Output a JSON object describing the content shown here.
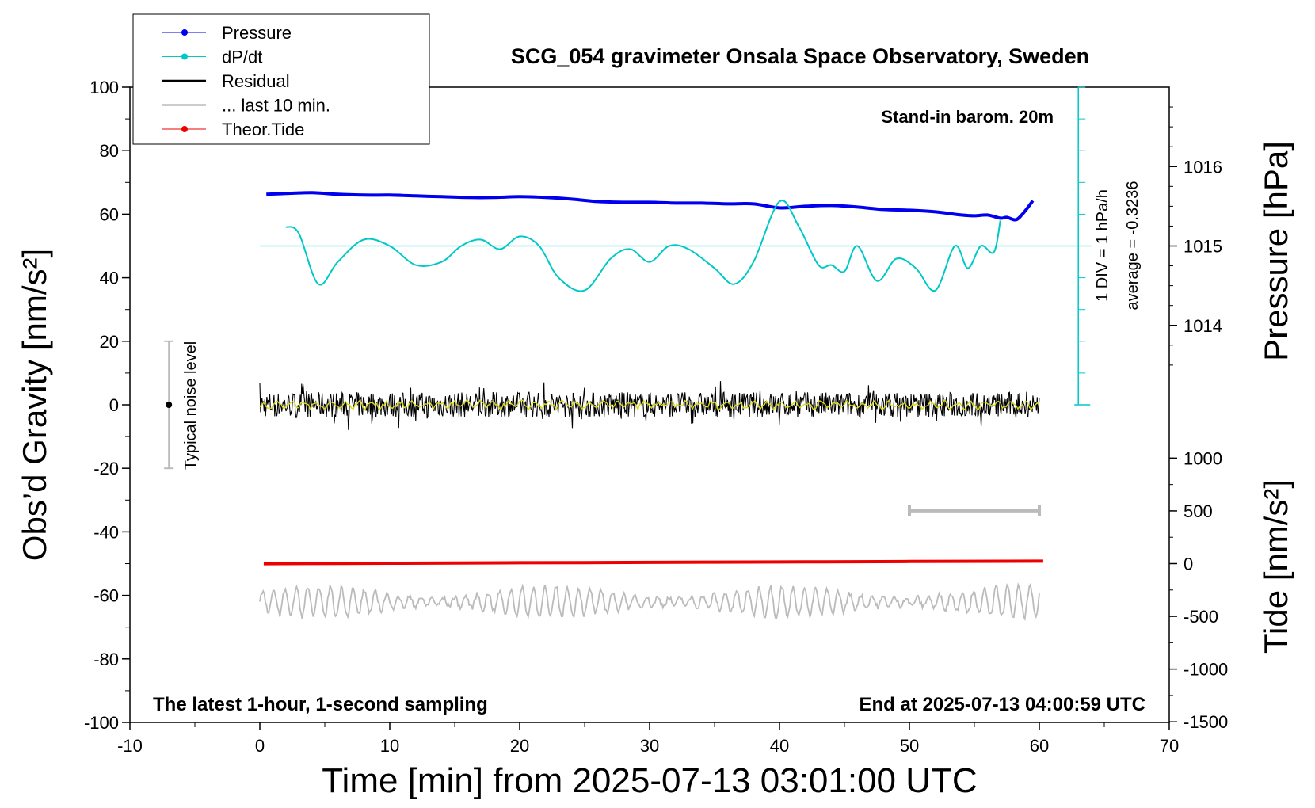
{
  "chart_data": {
    "type": "line",
    "title": "SCG_054 gravimeter Onsala Space Observatory, Sweden",
    "xlabel": "Time [min] from 2025-07-13 03:01:00 UTC",
    "ylabel_left": "Obs’d Gravity [nm/s²]",
    "ylabel_right_pressure": "Pressure [hPa]",
    "ylabel_right_tide": "Tide [nm/s²]",
    "xlim": [
      -10,
      70
    ],
    "ylim": [
      -100,
      100
    ],
    "x_ticks": [
      "-10",
      "0",
      "10",
      "20",
      "30",
      "40",
      "50",
      "60",
      "70"
    ],
    "y_ticks": [
      "-100",
      "-80",
      "-60",
      "-40",
      "-20",
      "0",
      "20",
      "40",
      "60",
      "80",
      "100"
    ],
    "pressure_axis": {
      "ticks": [
        "1014",
        "1015",
        "1016"
      ],
      "values": [
        1014,
        1015,
        1016
      ]
    },
    "tide_axis": {
      "ticks": [
        "-1500",
        "-1000",
        "-500",
        "0",
        "500",
        "1000"
      ],
      "values": [
        -1500,
        -1000,
        -500,
        0,
        500,
        1000
      ]
    },
    "legend": {
      "placement": "top-left",
      "entries": [
        {
          "label": "Pressure",
          "color": "#0000ee",
          "marker": true
        },
        {
          "label": "dP/dt",
          "color": "#00c8c8",
          "marker": true
        },
        {
          "label": "Residual",
          "color": "#000000",
          "marker": false
        },
        {
          "label": "... last 10 min.",
          "color": "#bbbbbb",
          "marker": false
        },
        {
          "label": "Theor.Tide",
          "color": "#ee0000",
          "marker": true
        }
      ]
    },
    "annotations": {
      "barometer": "Stand-in barom. 20m",
      "sampling": "The latest 1-hour, 1-second sampling",
      "end_time": "End at 2025-07-13 04:00:59 UTC",
      "noise_label": "Typical noise level",
      "dpdt_scale": "1 DIV = 1 hPa/h",
      "dpdt_average": "average = -0.3236"
    },
    "noise_bar": {
      "x": -7,
      "y_min": -20,
      "y_max": 20
    },
    "last10_bracket": {
      "x_start": 50,
      "x_end": 60,
      "tide_value": 500
    },
    "series": [
      {
        "name": "Pressure",
        "unit": "hPa",
        "color": "#0000ee",
        "x": [
          0.5,
          2,
          4,
          6,
          8,
          10,
          12,
          14,
          16,
          18,
          20,
          22,
          24,
          26,
          28,
          30,
          32,
          34,
          36,
          38,
          40,
          42,
          44,
          46,
          48,
          50,
          52,
          54,
          55,
          56,
          57,
          57.5,
          58.2,
          58.8,
          59.5
        ],
        "values": [
          1015.65,
          1015.66,
          1015.67,
          1015.65,
          1015.64,
          1015.64,
          1015.63,
          1015.62,
          1015.61,
          1015.61,
          1015.62,
          1015.61,
          1015.59,
          1015.56,
          1015.55,
          1015.55,
          1015.54,
          1015.54,
          1015.53,
          1015.53,
          1015.48,
          1015.5,
          1015.51,
          1015.49,
          1015.46,
          1015.45,
          1015.43,
          1015.39,
          1015.38,
          1015.39,
          1015.35,
          1015.36,
          1015.33,
          1015.42,
          1015.57
        ]
      },
      {
        "name": "dP/dt",
        "unit": "nm/s² (plot scale)",
        "color": "#00c8c8",
        "x": [
          2,
          3,
          4.5,
          6,
          8,
          10,
          12,
          14,
          15.5,
          17,
          18.5,
          20,
          21.5,
          23,
          25,
          27,
          28.5,
          30,
          31.5,
          33,
          35,
          36.5,
          38,
          40,
          41.5,
          43,
          44,
          45,
          46,
          47.5,
          49,
          50.5,
          52,
          53.5,
          54.5,
          55.5,
          56.5,
          57
        ],
        "values": [
          56,
          54,
          38,
          45,
          52,
          50,
          44,
          45,
          50,
          52,
          49,
          53,
          50,
          40,
          36,
          46,
          49,
          45,
          50,
          49,
          43,
          38,
          45,
          64,
          56,
          44,
          44,
          42,
          50,
          39,
          46,
          43,
          36,
          50,
          43,
          50,
          48,
          58
        ]
      },
      {
        "name": "Residual",
        "unit": "nm/s²",
        "color": "#000000",
        "x_range": [
          0,
          60
        ],
        "values": [
          0
        ],
        "amplitude": 4
      },
      {
        "name": "... last 10 min.",
        "unit": "nm/s²",
        "color": "#bbbbbb",
        "x_range": [
          0,
          60
        ],
        "values": [
          -62
        ],
        "amplitude": 3
      },
      {
        "name": "Theor.Tide",
        "unit": "nm/s²",
        "color": "#ee0000",
        "x": [
          0.3,
          10,
          20,
          30,
          40,
          50,
          60.3
        ],
        "values": [
          -1,
          4,
          8,
          12,
          16,
          20,
          23
        ]
      }
    ],
    "reference_line": {
      "name": "dP/dt zero",
      "value": 50
    },
    "grid": false
  }
}
